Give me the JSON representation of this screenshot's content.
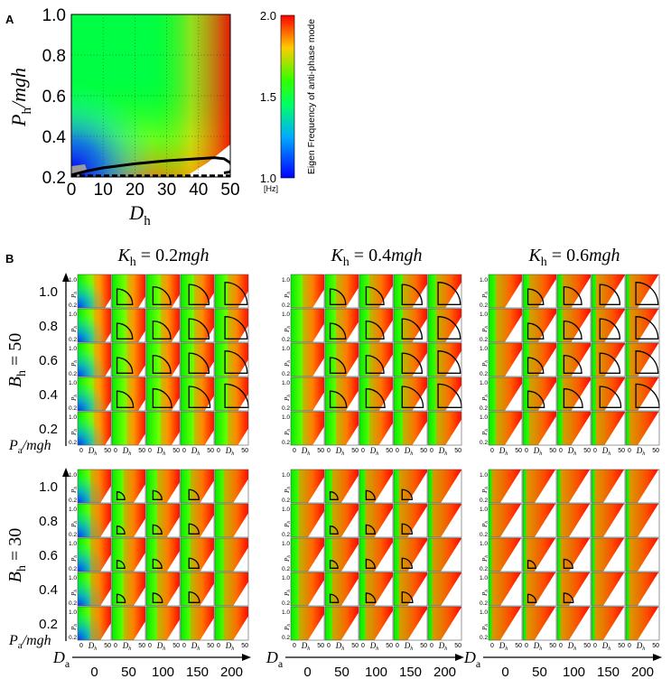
{
  "colors": {
    "scale_low": "#0000ff",
    "scale_mid": "#00ff00",
    "scale_high": "#ff0000",
    "unstable": "#ffffff",
    "grey_region": "#9a9a9a",
    "contour": "#000000"
  },
  "chart_data": [
    {
      "panel": "A",
      "type": "heatmap",
      "panel_label": "A",
      "xlabel_base": "D",
      "xlabel_sub": "h",
      "ylabel_base": "P",
      "ylabel_sub": "h",
      "ylabel_suffix": "/mgh",
      "xlim": [
        0,
        50
      ],
      "ylim": [
        0.2,
        1.0
      ],
      "x_ticks": [
        "0",
        "10",
        "20",
        "30",
        "40",
        "50"
      ],
      "y_ticks": [
        "1.0",
        "0.8",
        "0.6",
        "0.4",
        "0.2"
      ],
      "x_tick_values": [
        0,
        10,
        20,
        30,
        40,
        50
      ],
      "y_tick_values": [
        1.0,
        0.8,
        0.6,
        0.4,
        0.2
      ],
      "grid": true,
      "boundary_curve": [
        [
          0,
          0.21
        ],
        [
          5,
          0.23
        ],
        [
          10,
          0.245
        ],
        [
          20,
          0.265
        ],
        [
          30,
          0.28
        ],
        [
          40,
          0.29
        ],
        [
          45,
          0.295
        ],
        [
          48,
          0.29
        ],
        [
          50,
          0.27
        ],
        [
          50.5,
          0.25
        ],
        [
          50,
          0.225
        ],
        [
          48,
          0.22
        ]
      ],
      "dashed_baseline": [
        [
          0,
          0.22
        ],
        [
          50,
          0.22
        ]
      ],
      "colorbar": {
        "label": "Eigen Frequency of anti-phase mode",
        "unit": "[Hz]",
        "ticks": [
          "2.0",
          "1.5",
          "1.0"
        ],
        "tick_values": [
          2.0,
          1.5,
          1.0
        ],
        "range": [
          1.0,
          2.0
        ]
      }
    },
    {
      "panel": "B",
      "type": "heatmap",
      "panel_label": "B",
      "column_header_base": "K",
      "column_header_sub": "h",
      "column_header_eq": " = ",
      "column_header_suffix": "mgh",
      "column_headers": [
        "0.2",
        "0.4",
        "0.6"
      ],
      "row_group_base": "B",
      "row_group_sub": "h",
      "row_group_eq": " = ",
      "row_groups": [
        "50",
        "30"
      ],
      "pa_axis_base": "P",
      "pa_axis_sub": "a",
      "pa_axis_suffix": "/mgh",
      "pa_ticks": [
        "1.0",
        "0.8",
        "0.6",
        "0.4",
        "0.2"
      ],
      "pa_tick_values": [
        1.0,
        0.8,
        0.6,
        0.4,
        0.2
      ],
      "da_axis_base": "D",
      "da_axis_sub": "a",
      "da_ticks": [
        "0",
        "50",
        "100",
        "150",
        "200"
      ],
      "da_tick_values": [
        0,
        50,
        100,
        150,
        200
      ],
      "mini_y_label": "P",
      "mini_y_sub": "h",
      "mini_x_label": "D",
      "mini_x_sub": "h",
      "mini_y_ticks": [
        "1.0",
        "0.2"
      ],
      "mini_x_ticks": [
        "0",
        "50"
      ]
    }
  ]
}
